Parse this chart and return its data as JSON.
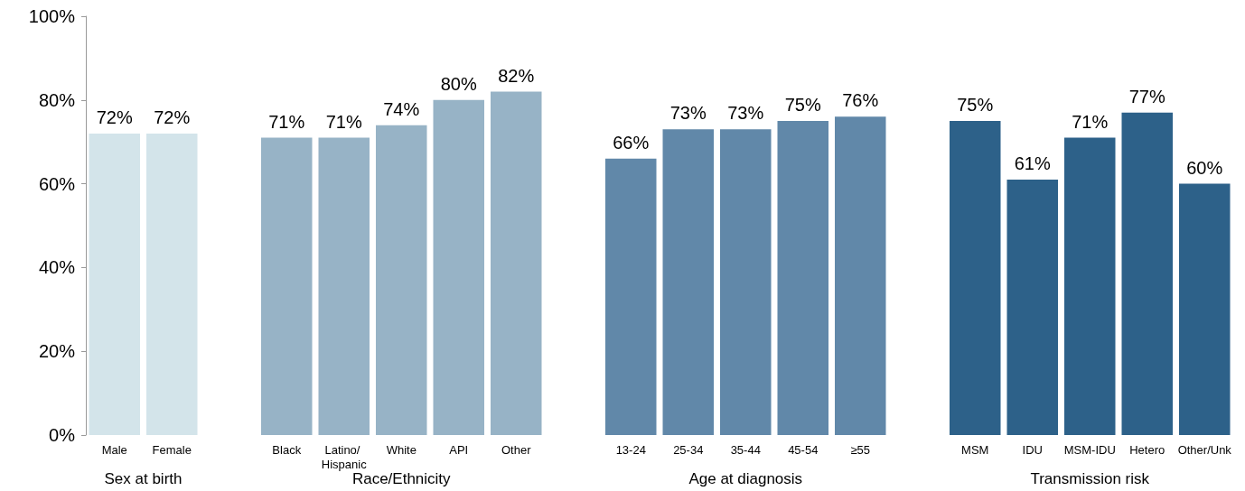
{
  "chart_data": {
    "type": "bar",
    "categories": [
      "Male",
      "Female",
      null,
      "Black",
      "Latino/ Hispanic",
      "White",
      "API",
      "Other",
      null,
      "13-24",
      "25-34",
      "35-44",
      "45-54",
      "≥55",
      null,
      "MSM",
      "IDU",
      "MSM-IDU",
      "Hetero",
      "Other/Unk"
    ],
    "values": [
      72,
      72,
      null,
      71,
      71,
      74,
      80,
      82,
      null,
      66,
      73,
      73,
      75,
      76,
      null,
      75,
      61,
      71,
      77,
      60
    ],
    "value_labels": [
      "72%",
      "72%",
      null,
      "71%",
      "71%",
      "74%",
      "80%",
      "82%",
      null,
      "66%",
      "73%",
      "73%",
      "75%",
      "76%",
      null,
      "75%",
      "61%",
      "71%",
      "77%",
      "60%"
    ],
    "colors": [
      "#d3e4ea",
      "#d3e4ea",
      null,
      "#97b3c6",
      "#97b3c6",
      "#97b3c6",
      "#97b3c6",
      "#97b3c6",
      null,
      "#6188a9",
      "#6188a9",
      "#6188a9",
      "#6188a9",
      "#6188a9",
      null,
      "#2d6189",
      "#2d6189",
      "#2d6189",
      "#2d6189",
      "#2d6189"
    ],
    "annotations": [
      "Sex at birth",
      "Race/Ethnicity",
      "Age at diagnosis",
      "Transmission risk"
    ],
    "ylim": [
      0,
      100
    ],
    "yticks": [
      {
        "value": 0,
        "label": "0%"
      },
      {
        "value": 20,
        "label": "20%"
      },
      {
        "value": 40,
        "label": "40%"
      },
      {
        "value": 60,
        "label": "60%"
      },
      {
        "value": 80,
        "label": "80%"
      },
      {
        "value": 100,
        "label": "100%"
      }
    ],
    "grid": false
  }
}
